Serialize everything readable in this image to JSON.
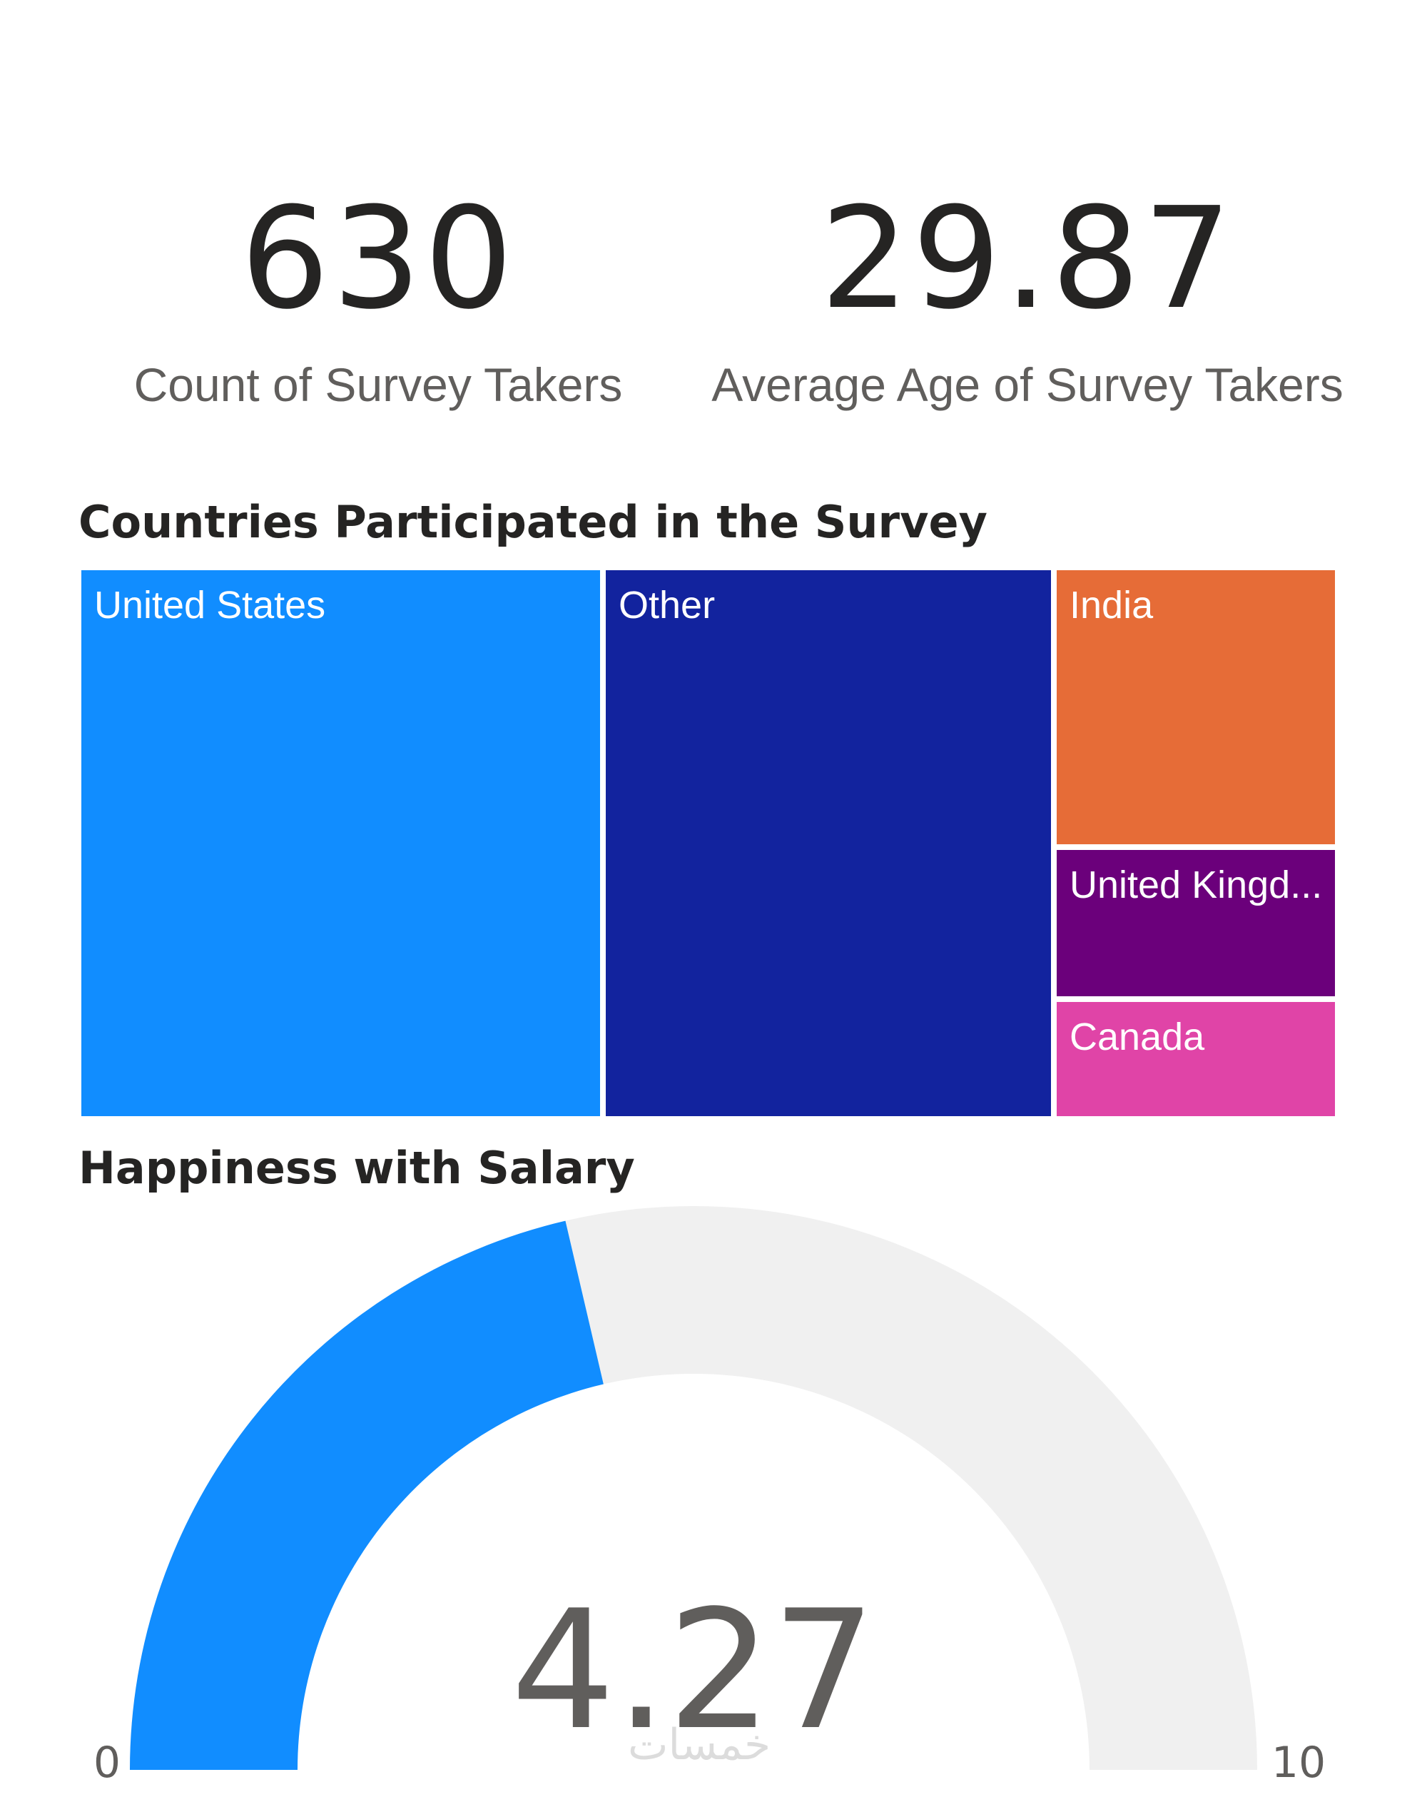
{
  "cards": {
    "count": {
      "value": "630",
      "label": "Count of Survey Takers"
    },
    "avg_age": {
      "value": "29.87",
      "label": "Average Age of Survey Takers"
    }
  },
  "treemap": {
    "title": "Countries Participated in the Survey",
    "tiles": [
      {
        "label": "United States",
        "color": "#118dff"
      },
      {
        "label": "Other",
        "color": "#12239e"
      },
      {
        "label": "India",
        "color": "#e66c37"
      },
      {
        "label": "United Kingd...",
        "color": "#6b007b"
      },
      {
        "label": "Canada",
        "color": "#e044a7"
      }
    ]
  },
  "gauge": {
    "title": "Happiness with Salary",
    "value": 4.27,
    "value_label": "4.27",
    "min": 0,
    "max": 10,
    "min_label": "0",
    "max_label": "10",
    "fill_color": "#118dff",
    "track_color": "#f0f0f0"
  },
  "watermark": "خمسات"
}
